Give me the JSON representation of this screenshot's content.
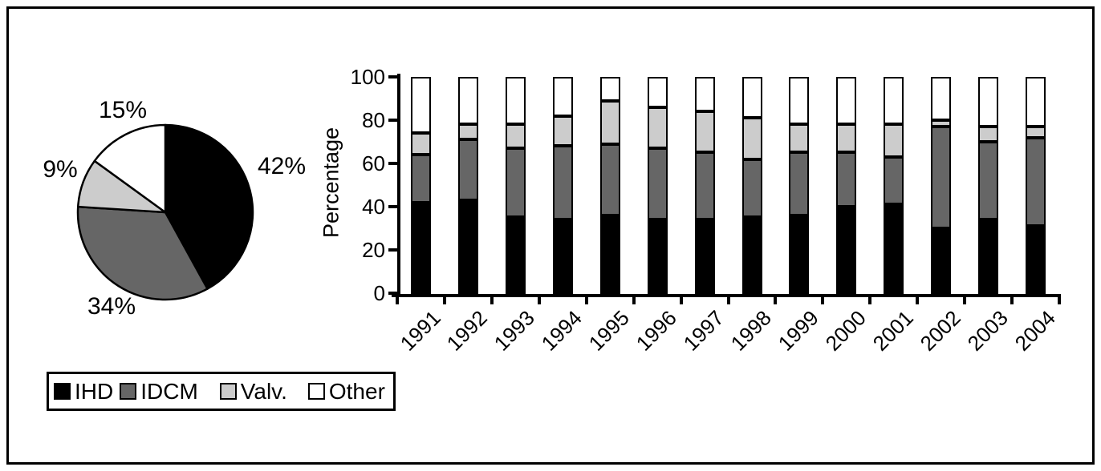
{
  "figure": {
    "ylabel": "Percentage"
  },
  "colors": {
    "ihd": "#000000",
    "idcm": "#666666",
    "valv": "#cccccc",
    "other": "#ffffff",
    "axis": "#000000"
  },
  "legend": {
    "items": [
      {
        "key": "ihd",
        "label": "IHD",
        "color": "#000000"
      },
      {
        "key": "idcm",
        "label": "IDCM",
        "color": "#666666"
      },
      {
        "key": "valv",
        "label": "Valv.",
        "color": "#cccccc"
      },
      {
        "key": "other",
        "label": "Other",
        "color": "#ffffff"
      }
    ]
  },
  "chart_data": [
    {
      "type": "pie",
      "direction": "clockwise",
      "start_angle_deg": 0,
      "slices": [
        {
          "key": "ihd",
          "name": "IHD",
          "value": 42,
          "label": "42%",
          "color": "#000000"
        },
        {
          "key": "idcm",
          "name": "IDCM",
          "value": 34,
          "label": "34%",
          "color": "#666666"
        },
        {
          "key": "valv",
          "name": "Valv.",
          "value": 9,
          "label": "9%",
          "color": "#cccccc"
        },
        {
          "key": "other",
          "name": "Other",
          "value": 15,
          "label": "15%",
          "color": "#ffffff"
        }
      ]
    },
    {
      "type": "bar",
      "stacked": true,
      "title": "",
      "xlabel": "",
      "ylabel": "Percentage",
      "ylim": [
        0,
        100
      ],
      "yticks": [
        0,
        20,
        40,
        60,
        80,
        100
      ],
      "legend_position": "bottom-left",
      "categories": [
        "1991",
        "1992",
        "1993",
        "1994",
        "1995",
        "1996",
        "1997",
        "1998",
        "1999",
        "2000",
        "2001",
        "2002",
        "2003",
        "2004"
      ],
      "series": [
        {
          "key": "ihd",
          "name": "IHD",
          "color": "#000000",
          "values": [
            42,
            43,
            35,
            34,
            36,
            34,
            34,
            35,
            36,
            40,
            41,
            30,
            34,
            31
          ]
        },
        {
          "key": "idcm",
          "name": "IDCM",
          "color": "#666666",
          "values": [
            22,
            28,
            32,
            34,
            33,
            33,
            31,
            27,
            29,
            25,
            22,
            47,
            36,
            41
          ]
        },
        {
          "key": "valv",
          "name": "Valv.",
          "color": "#cccccc",
          "values": [
            10,
            7,
            11,
            14,
            20,
            19,
            19,
            19,
            13,
            13,
            15,
            3,
            7,
            5
          ]
        },
        {
          "key": "other",
          "name": "Other",
          "color": "#ffffff",
          "values": [
            26,
            22,
            22,
            18,
            11,
            14,
            16,
            19,
            22,
            22,
            22,
            20,
            23,
            23
          ]
        }
      ]
    }
  ]
}
